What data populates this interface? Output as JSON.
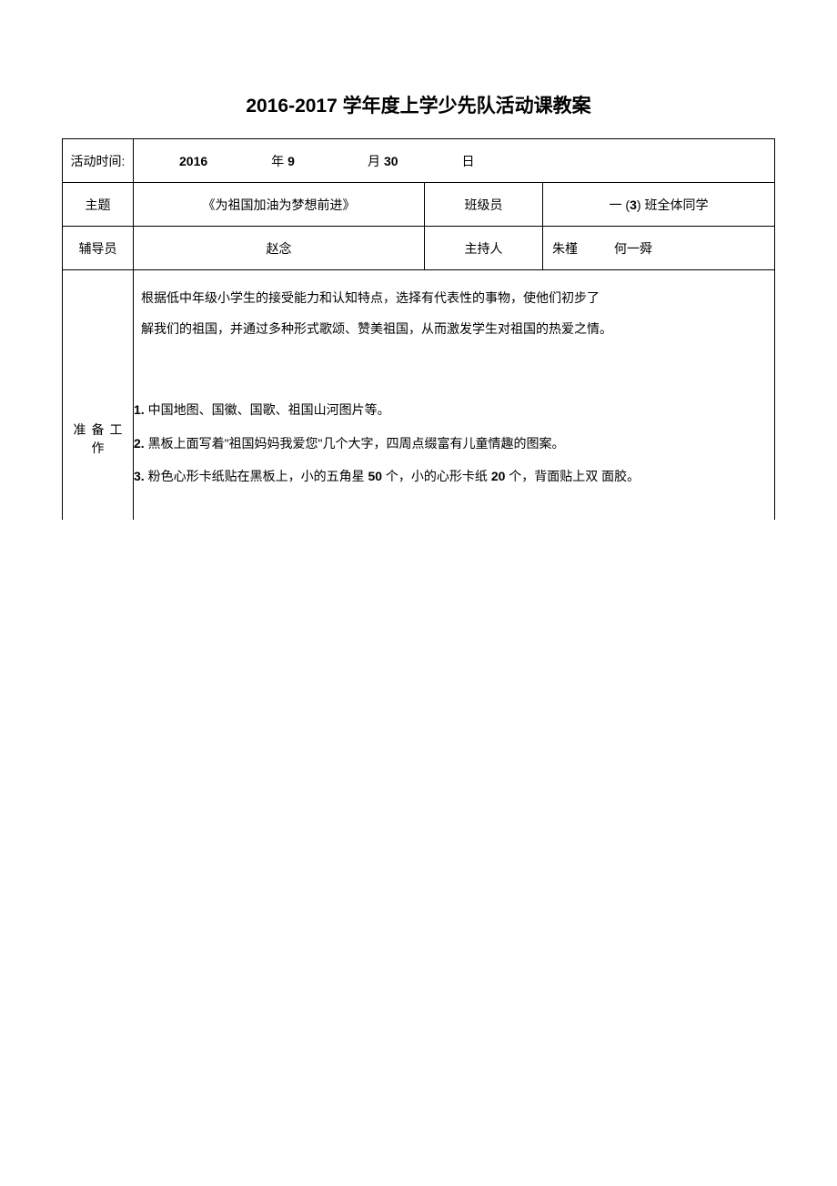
{
  "title": "2016-2017 学年度上学少先队活动课教案",
  "row1": {
    "label": "活动时间:",
    "year_num": "2016",
    "year_unit": "年",
    "month_num": "9",
    "month_unit": "月",
    "day_num": "30",
    "day_unit": "日"
  },
  "row2": {
    "theme_label": "主题",
    "theme_value": "《为祖国加油为梦想前进》",
    "class_label": "班级员",
    "class_prefix": "一  (",
    "class_num": "3",
    "class_suffix": ")  班全体同学"
  },
  "row3": {
    "counselor_label": "辅导员",
    "counselor_value": "赵念",
    "host_label": "主持人",
    "host_name1": "朱槿",
    "host_name2": "何一舜"
  },
  "row4": {
    "goal_line1": "根据低中年级小学生的接受能力和认知特点，选择有代表性的事物，使他们初步了",
    "goal_line2": "解我们的祖国，并通过多种形式歌颂、赞美祖国，从而激发学生对祖国的热爱之情。"
  },
  "row5": {
    "prep_label": "准备工作",
    "item1_num": "1.",
    "item1_text": " 中国地图、国徽、国歌、祖国山河图片等。",
    "item2_num": "2.",
    "item2_text": " 黑板上面写着\"祖国妈妈我爱您\"几个大字，四周点缀富有儿童情趣的图案。",
    "item3_num": "3.",
    "item3_text_a": " 粉色心形卡纸贴在黑板上，小的五角星 ",
    "item3_num_a": "50",
    "item3_text_b": " 个，小的心形卡纸 ",
    "item3_num_b": "20",
    "item3_text_c": " 个，背面贴上双 面胶。"
  }
}
